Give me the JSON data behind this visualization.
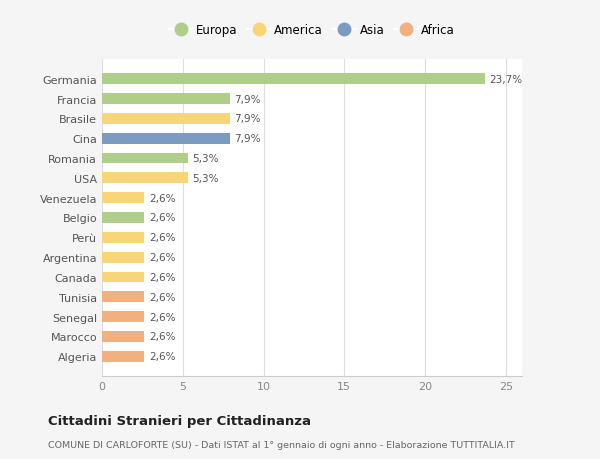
{
  "categories": [
    "Germania",
    "Francia",
    "Brasile",
    "Cina",
    "Romania",
    "USA",
    "Venezuela",
    "Belgio",
    "Perù",
    "Argentina",
    "Canada",
    "Tunisia",
    "Senegal",
    "Marocco",
    "Algeria"
  ],
  "values": [
    23.7,
    7.9,
    7.9,
    7.9,
    5.3,
    5.3,
    2.6,
    2.6,
    2.6,
    2.6,
    2.6,
    2.6,
    2.6,
    2.6,
    2.6
  ],
  "bar_colors": [
    "#aece8a",
    "#aece8a",
    "#f9d57a",
    "#7b9cc0",
    "#aece8a",
    "#f9d57a",
    "#f9d57a",
    "#aece8a",
    "#f9d57a",
    "#f9d57a",
    "#f9d57a",
    "#f0b080",
    "#f0b080",
    "#f0b080",
    "#f0b080"
  ],
  "labels": [
    "23,7%",
    "7,9%",
    "7,9%",
    "7,9%",
    "5,3%",
    "5,3%",
    "2,6%",
    "2,6%",
    "2,6%",
    "2,6%",
    "2,6%",
    "2,6%",
    "2,6%",
    "2,6%",
    "2,6%"
  ],
  "legend": [
    {
      "label": "Europa",
      "color": "#aece8a"
    },
    {
      "label": "America",
      "color": "#f9d57a"
    },
    {
      "label": "Asia",
      "color": "#7b9cc0"
    },
    {
      "label": "Africa",
      "color": "#f0b080"
    }
  ],
  "title": "Cittadini Stranieri per Cittadinanza",
  "subtitle": "COMUNE DI CARLOFORTE (SU) - Dati ISTAT al 1° gennaio di ogni anno - Elaborazione TUTTITALIA.IT",
  "xlim": [
    0,
    26
  ],
  "xticks": [
    0,
    5,
    10,
    15,
    20,
    25
  ],
  "background_color": "#f5f5f5",
  "plot_bg_color": "#ffffff"
}
